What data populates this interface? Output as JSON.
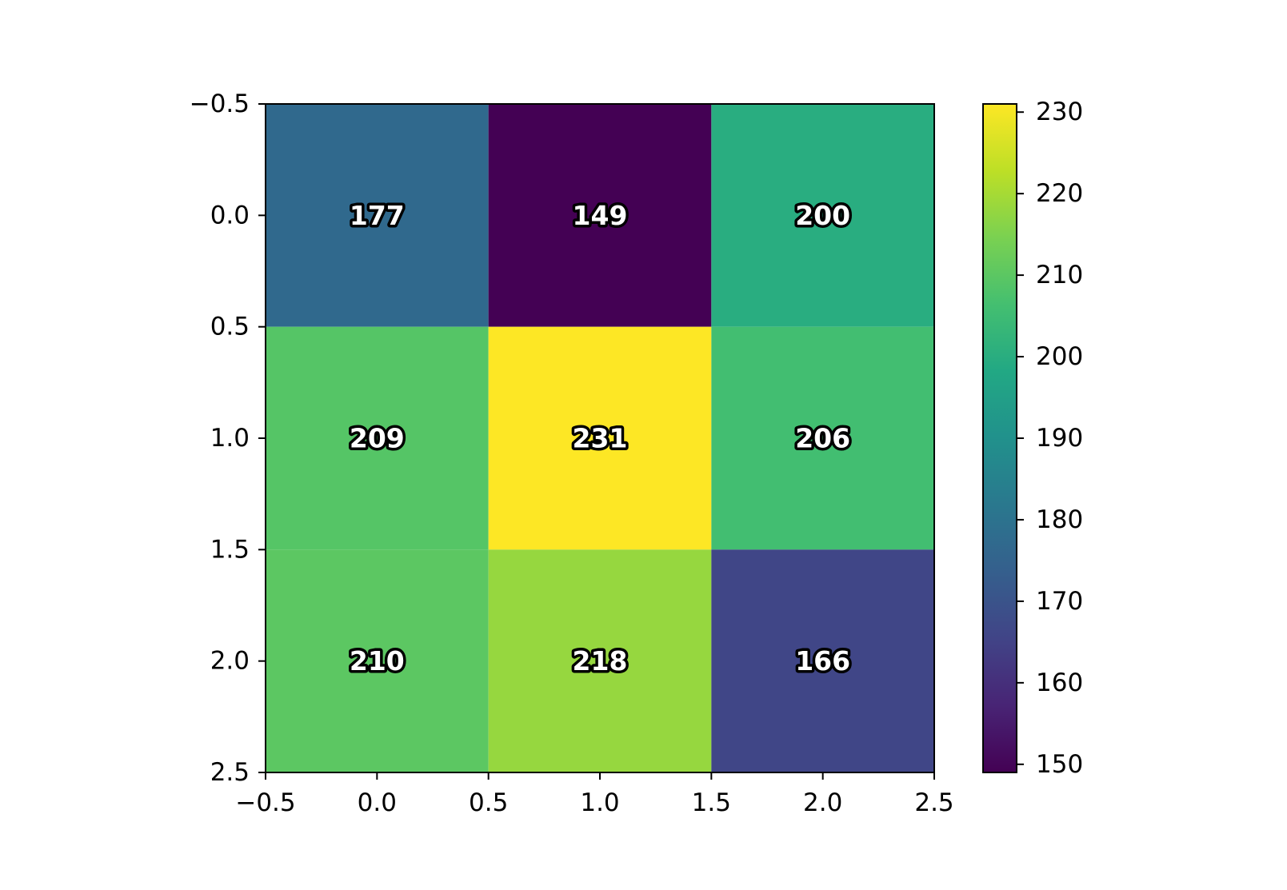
{
  "chart_data": {
    "type": "heatmap",
    "colormap": "viridis",
    "rows": 3,
    "cols": 3,
    "values": [
      [
        177,
        149,
        200
      ],
      [
        209,
        231,
        206
      ],
      [
        210,
        218,
        166
      ]
    ],
    "value_labels": [
      [
        "177",
        "149",
        "200"
      ],
      [
        "209",
        "231",
        "206"
      ],
      [
        "210",
        "218",
        "166"
      ]
    ],
    "xlim": [
      -0.5,
      2.5
    ],
    "ylim": [
      2.5,
      -0.5
    ],
    "x_ticks": [
      -0.5,
      0.0,
      0.5,
      1.0,
      1.5,
      2.0,
      2.5
    ],
    "x_tick_labels": [
      "−0.5",
      "0.0",
      "0.5",
      "1.0",
      "1.5",
      "2.0",
      "2.5"
    ],
    "y_ticks": [
      -0.5,
      0.0,
      0.5,
      1.0,
      1.5,
      2.0,
      2.5
    ],
    "y_tick_labels": [
      "−0.5",
      "0.0",
      "0.5",
      "1.0",
      "1.5",
      "2.0",
      "2.5"
    ],
    "colorbar": {
      "range": [
        149,
        231
      ],
      "ticks": [
        150,
        160,
        170,
        180,
        190,
        200,
        210,
        220,
        230
      ],
      "tick_labels": [
        "150",
        "160",
        "170",
        "180",
        "190",
        "200",
        "210",
        "220",
        "230"
      ]
    },
    "title": "",
    "xlabel": "",
    "ylabel": "",
    "grid": false
  }
}
